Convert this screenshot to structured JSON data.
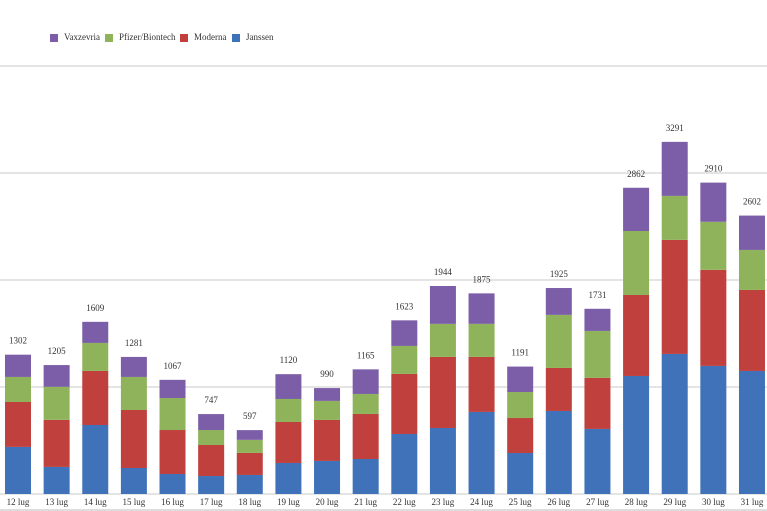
{
  "chart_data": {
    "type": "stacked-bar",
    "categories": [
      "12 lug",
      "13 lug",
      "14 lug",
      "15 lug",
      "16 lug",
      "17 lug",
      "18 lug",
      "19 lug",
      "20 lug",
      "21 lug",
      "22 lug",
      "23 lug",
      "24 lug",
      "25 lug",
      "26 lug",
      "27 lug",
      "28 lug",
      "29 lug",
      "30 lug",
      "31 lug"
    ],
    "series": [
      {
        "name": "Vaxzevria",
        "color": "#7b5ea7",
        "values": [
          208,
          203,
          197,
          187,
          170,
          149,
          91,
          232,
          120,
          230,
          239,
          354,
          285,
          238,
          251,
          207,
          404,
          505,
          366,
          321
        ]
      },
      {
        "name": "Pfizer/Biontech",
        "color": "#8fb35a",
        "values": [
          234,
          309,
          262,
          309,
          299,
          140,
          122,
          215,
          178,
          187,
          262,
          309,
          309,
          243,
          496,
          439,
          598,
          411,
          449,
          374
        ]
      },
      {
        "name": "Moderna",
        "color": "#c0403e",
        "values": [
          420,
          440,
          505,
          542,
          411,
          290,
          206,
          383,
          383,
          421,
          561,
          664,
          514,
          327,
          402,
          477,
          757,
          1066,
          898,
          757
        ]
      },
      {
        "name": "Janssen",
        "color": "#3f72b8",
        "values": [
          440,
          253,
          645,
          243,
          187,
          168,
          178,
          290,
          309,
          327,
          561,
          617,
          767,
          383,
          776,
          608,
          1103,
          1309,
          1197,
          1150
        ]
      }
    ],
    "totals": [
      1302,
      1205,
      1609,
      1281,
      1067,
      747,
      597,
      1120,
      990,
      1165,
      1623,
      1944,
      1875,
      1191,
      1925,
      1731,
      2862,
      3291,
      2910,
      2602
    ],
    "ylim": [
      0,
      4000
    ],
    "yticks": [
      0,
      1000,
      2000,
      3000,
      4000
    ],
    "grid": true
  }
}
